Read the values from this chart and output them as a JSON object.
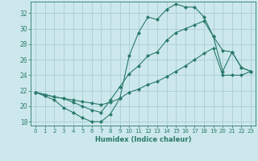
{
  "xlabel": "Humidex (Indice chaleur)",
  "bg_color": "#cce8ec",
  "grid_color": "#aacdd4",
  "line_color": "#2a7a6a",
  "xlim": [
    -0.5,
    23.5
  ],
  "ylim": [
    17.5,
    33.5
  ],
  "xticks": [
    0,
    1,
    2,
    3,
    4,
    5,
    6,
    7,
    8,
    9,
    10,
    11,
    12,
    13,
    14,
    15,
    16,
    17,
    18,
    19,
    20,
    21,
    22,
    23
  ],
  "yticks": [
    18,
    20,
    22,
    24,
    26,
    28,
    30,
    32
  ],
  "line1_x": [
    0,
    1,
    2,
    3,
    4,
    5,
    6,
    7,
    8,
    9,
    10,
    11,
    12,
    13,
    14,
    15,
    16,
    17,
    18,
    19,
    20,
    21,
    22,
    23
  ],
  "line1_y": [
    21.8,
    21.3,
    20.8,
    19.8,
    19.2,
    18.5,
    18.0,
    18.0,
    19.0,
    21.0,
    26.5,
    29.5,
    31.5,
    31.2,
    32.5,
    33.2,
    32.8,
    32.8,
    31.5,
    29.0,
    27.2,
    27.0,
    25.0,
    24.5
  ],
  "line2_x": [
    0,
    1,
    2,
    3,
    4,
    5,
    6,
    7,
    8,
    9,
    10,
    11,
    12,
    13,
    14,
    15,
    16,
    17,
    18,
    19,
    20,
    21,
    22,
    23
  ],
  "line2_y": [
    21.8,
    21.5,
    21.2,
    21.0,
    20.5,
    20.0,
    19.5,
    19.2,
    20.8,
    22.5,
    24.2,
    25.2,
    26.5,
    27.0,
    28.5,
    29.5,
    30.0,
    30.5,
    31.0,
    29.0,
    24.5,
    27.0,
    25.0,
    24.5
  ],
  "line3_x": [
    0,
    1,
    2,
    3,
    4,
    5,
    6,
    7,
    8,
    9,
    10,
    11,
    12,
    13,
    14,
    15,
    16,
    17,
    18,
    19,
    20,
    21,
    22,
    23
  ],
  "line3_y": [
    21.8,
    21.5,
    21.2,
    21.0,
    20.8,
    20.6,
    20.4,
    20.2,
    20.5,
    21.0,
    21.8,
    22.2,
    22.8,
    23.2,
    23.8,
    24.5,
    25.2,
    26.0,
    26.8,
    27.5,
    24.0,
    24.0,
    24.0,
    24.5
  ]
}
